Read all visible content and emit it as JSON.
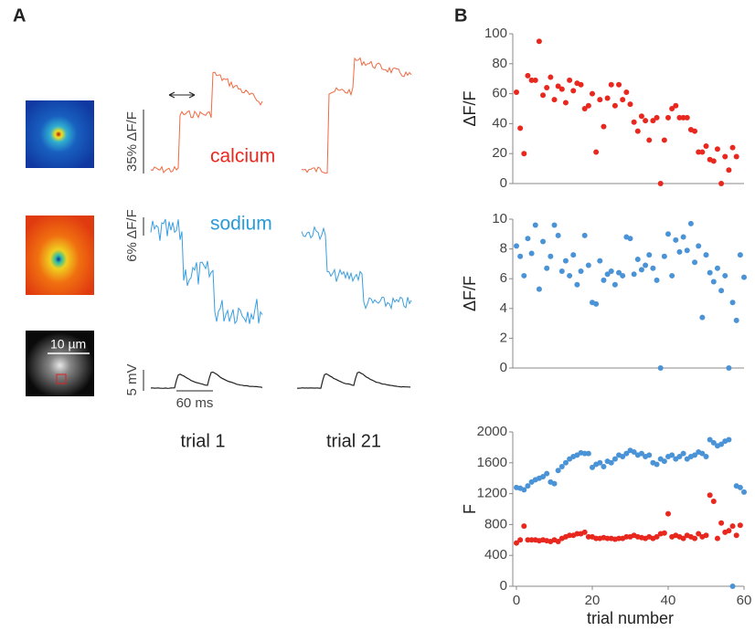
{
  "panel_labels": [
    "A",
    "B"
  ],
  "panel_a": {
    "calcium": "calcium",
    "sodium": "sodium",
    "scale_bar": "10 µm",
    "calcium_scale": "35% ΔF/F",
    "sodium_scale": "6% ΔF/F",
    "voltage_scale": "5 mV",
    "time_scale": "60 ms",
    "trials": [
      "trial 1",
      "trial 21"
    ]
  },
  "chart_data": [
    {
      "type": "scatter",
      "y_label": "ΔF/F",
      "xlim": [
        0,
        60
      ],
      "ylim": [
        0,
        100
      ],
      "yticks": [
        0,
        20,
        40,
        60,
        80,
        100
      ],
      "x": [
        0,
        1,
        2,
        3,
        4,
        5,
        6,
        7,
        8,
        9,
        10,
        11,
        12,
        13,
        14,
        15,
        16,
        17,
        18,
        19,
        20,
        21,
        22,
        23,
        24,
        25,
        26,
        27,
        28,
        29,
        30,
        31,
        32,
        33,
        34,
        35,
        36,
        37,
        38,
        39,
        40,
        41,
        42,
        43,
        44,
        45,
        46,
        47,
        48,
        49,
        50,
        51,
        52,
        53,
        54,
        55,
        56,
        57,
        58
      ],
      "series": [
        {
          "color": "#e8281e",
          "values": [
            61,
            37,
            20,
            72,
            69,
            69,
            95,
            59,
            64,
            71,
            56,
            65,
            63,
            54,
            69,
            62,
            67,
            66,
            50,
            52,
            60,
            21,
            56,
            38,
            57,
            66,
            52,
            66,
            56,
            61,
            53,
            41,
            35,
            45,
            42,
            29,
            42,
            44,
            0,
            29,
            44,
            50,
            52,
            44,
            44,
            44,
            36,
            35,
            21,
            21,
            25,
            16,
            15,
            23,
            0,
            18,
            9,
            24,
            18
          ]
        }
      ]
    },
    {
      "type": "scatter",
      "y_label": "ΔF/F",
      "xlim": [
        0,
        60
      ],
      "ylim": [
        0,
        10
      ],
      "yticks": [
        0,
        2,
        4,
        6,
        8,
        10
      ],
      "x": [
        0,
        1,
        2,
        3,
        4,
        5,
        6,
        7,
        8,
        9,
        10,
        11,
        12,
        13,
        14,
        15,
        16,
        17,
        18,
        19,
        20,
        21,
        22,
        23,
        24,
        25,
        26,
        27,
        28,
        29,
        30,
        31,
        32,
        33,
        34,
        35,
        36,
        37,
        38,
        39,
        40,
        41,
        42,
        43,
        44,
        45,
        46,
        47,
        48,
        49,
        50,
        51,
        52,
        53,
        54,
        55,
        56,
        57,
        58,
        59,
        60
      ],
      "series": [
        {
          "color": "#4a93d6",
          "values": [
            8.2,
            7.5,
            6.2,
            8.7,
            7.7,
            9.6,
            5.3,
            8.5,
            6.7,
            7.5,
            9.6,
            8.9,
            6.5,
            7.2,
            6.2,
            7.6,
            5.6,
            6.5,
            8.9,
            6.9,
            4.4,
            4.3,
            7.2,
            5.9,
            6.3,
            6.5,
            5.6,
            6.4,
            6.2,
            8.8,
            8.7,
            6.3,
            7.3,
            6.6,
            6.9,
            7.6,
            6.7,
            5.9,
            0,
            7.5,
            9.0,
            6.2,
            8.6,
            7.8,
            8.8,
            7.9,
            9.7,
            7.1,
            8.2,
            3.4,
            7.6,
            6.4,
            5.8,
            6.7,
            5.2,
            6.2,
            0,
            4.4,
            3.2,
            7.6,
            6.1
          ]
        }
      ]
    },
    {
      "type": "scatter",
      "y_label": "F",
      "x_label": "trial number",
      "xlim": [
        0,
        60
      ],
      "xticks": [
        0,
        20,
        40,
        60
      ],
      "ylim": [
        0,
        2000
      ],
      "yticks": [
        0,
        400,
        800,
        1200,
        1600,
        2000
      ],
      "x": [
        0,
        1,
        2,
        3,
        4,
        5,
        6,
        7,
        8,
        9,
        10,
        11,
        12,
        13,
        14,
        15,
        16,
        17,
        18,
        19,
        20,
        21,
        22,
        23,
        24,
        25,
        26,
        27,
        28,
        29,
        30,
        31,
        32,
        33,
        34,
        35,
        36,
        37,
        38,
        39,
        40,
        41,
        42,
        43,
        44,
        45,
        46,
        47,
        48,
        49,
        50,
        51,
        52,
        53,
        54,
        55,
        56,
        57,
        58,
        59,
        60
      ],
      "series": [
        {
          "color": "#4a93d6",
          "values": [
            1280,
            1270,
            1250,
            1300,
            1350,
            1380,
            1400,
            1420,
            1460,
            1350,
            1330,
            1500,
            1550,
            1600,
            1650,
            1680,
            1700,
            1730,
            1720,
            1720,
            1540,
            1580,
            1600,
            1550,
            1620,
            1600,
            1650,
            1700,
            1680,
            1720,
            1760,
            1740,
            1700,
            1720,
            1680,
            1700,
            1600,
            1580,
            1650,
            1620,
            1680,
            1700,
            1650,
            1680,
            1720,
            1650,
            1680,
            1700,
            1740,
            1720,
            1680,
            1900,
            1860,
            1820,
            1840,
            1880,
            1900,
            0,
            1300,
            1280,
            1220
          ]
        },
        {
          "color": "#e8281e",
          "values": [
            560,
            600,
            780,
            600,
            600,
            600,
            590,
            600,
            590,
            580,
            600,
            580,
            620,
            640,
            660,
            660,
            680,
            680,
            700,
            640,
            640,
            620,
            620,
            630,
            620,
            620,
            610,
            620,
            620,
            640,
            640,
            660,
            640,
            630,
            620,
            640,
            620,
            640,
            680,
            690,
            940,
            640,
            660,
            640,
            620,
            660,
            640,
            620,
            680,
            640,
            660,
            1180,
            1100,
            620,
            820,
            700,
            720,
            780,
            660,
            790,
            null
          ]
        }
      ]
    }
  ]
}
